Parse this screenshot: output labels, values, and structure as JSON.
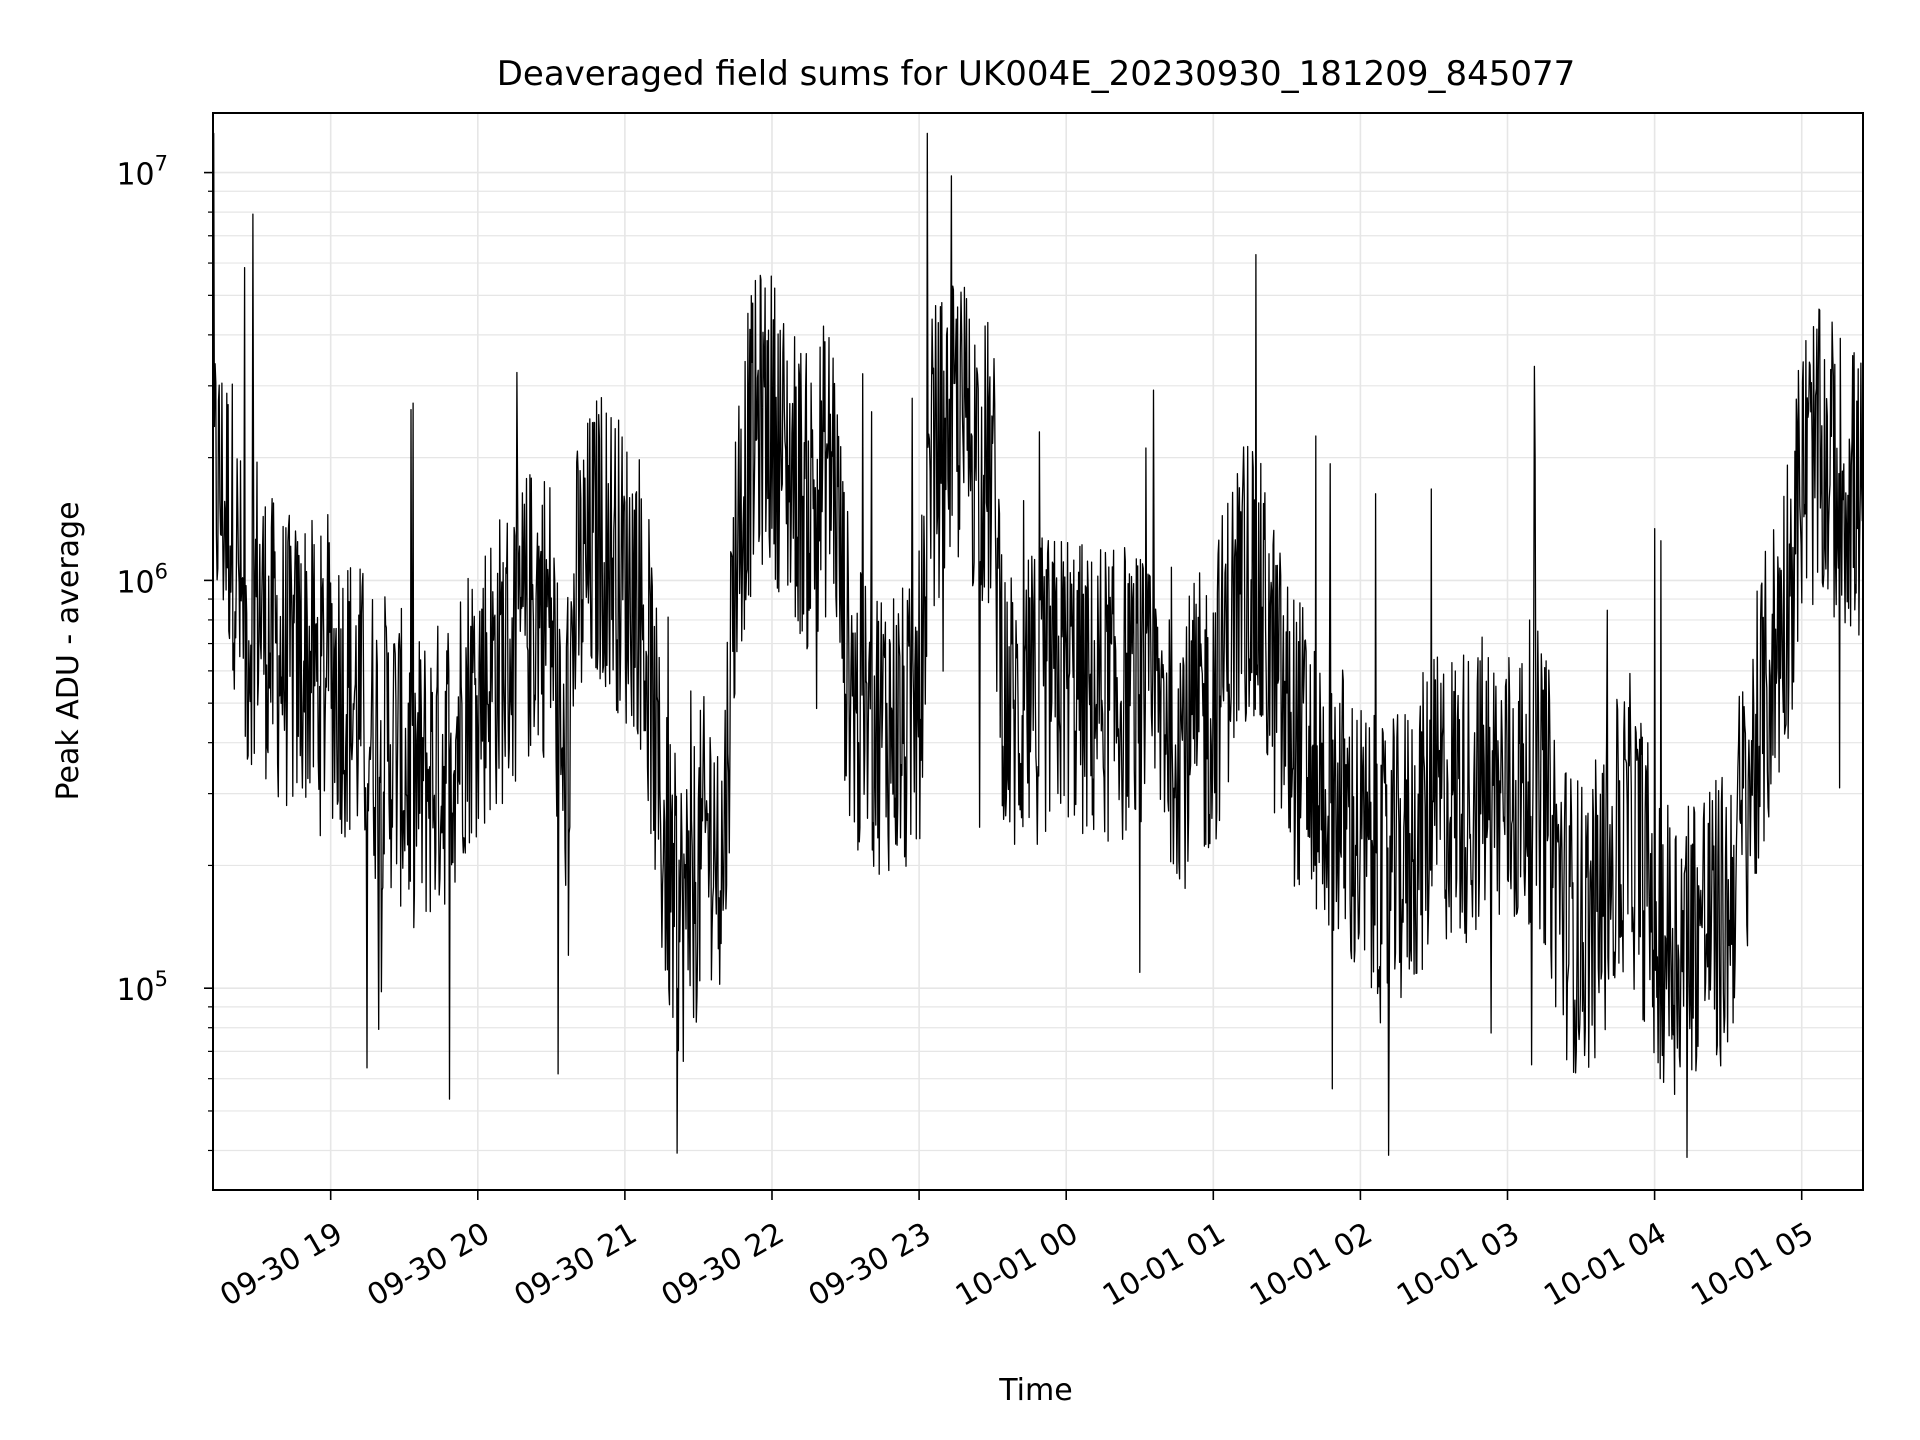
{
  "chart_data": {
    "type": "line",
    "title": "Deaveraged field sums for UK004E_20230930_181209_845077",
    "xlabel": "Time",
    "ylabel": "Peak ADU - average",
    "yscale": "log",
    "x_range": [
      "2023-09-30 18:12",
      "2023-10-01 05:25"
    ],
    "ylim": [
      32000,
      14000000
    ],
    "x_ticks": [
      "09-30 19",
      "09-30 20",
      "09-30 21",
      "09-30 22",
      "09-30 23",
      "10-01 00",
      "10-01 01",
      "10-01 02",
      "10-01 03",
      "10-01 04",
      "10-01 05"
    ],
    "x_tick_times": [
      "2023-09-30 19:00",
      "2023-09-30 20:00",
      "2023-09-30 21:00",
      "2023-09-30 22:00",
      "2023-09-30 23:00",
      "2023-10-01 00:00",
      "2023-10-01 01:00",
      "2023-10-01 02:00",
      "2023-10-01 03:00",
      "2023-10-01 04:00",
      "2023-10-01 05:00"
    ],
    "y_ticks": [
      {
        "value": 100000,
        "base": "10",
        "exp": "5"
      },
      {
        "value": 1000000,
        "base": "10",
        "exp": "6"
      },
      {
        "value": 10000000,
        "base": "10",
        "exp": "7"
      }
    ],
    "grid": true,
    "line_color": "#000000",
    "series": [
      {
        "values": [
          [
            "2023-09-30 18:12",
            1800000
          ],
          [
            "2023-09-30 18:20",
            1400000
          ],
          [
            "2023-09-30 18:25",
            700000
          ],
          [
            "2023-09-30 18:30",
            950000
          ],
          [
            "2023-09-30 18:35",
            700000
          ],
          [
            "2023-09-30 18:40",
            650000
          ],
          [
            "2023-09-30 18:45",
            600000
          ],
          [
            "2023-09-30 18:50",
            650000
          ],
          [
            "2023-09-30 18:55",
            550000
          ],
          [
            "2023-09-30 19:00",
            600000
          ],
          [
            "2023-09-30 19:05",
            550000
          ],
          [
            "2023-09-30 19:10",
            500000
          ],
          [
            "2023-09-30 19:15",
            450000
          ],
          [
            "2023-09-30 19:20",
            400000
          ],
          [
            "2023-09-30 19:25",
            400000
          ],
          [
            "2023-09-30 19:30",
            350000
          ],
          [
            "2023-09-30 19:35",
            320000
          ],
          [
            "2023-09-30 19:40",
            330000
          ],
          [
            "2023-09-30 19:45",
            350000
          ],
          [
            "2023-09-30 19:50",
            400000
          ],
          [
            "2023-09-30 19:55",
            500000
          ],
          [
            "2023-09-30 20:00",
            550000
          ],
          [
            "2023-09-30 20:05",
            600000
          ],
          [
            "2023-09-30 20:10",
            650000
          ],
          [
            "2023-09-30 20:15",
            700000
          ],
          [
            "2023-09-30 20:20",
            800000
          ],
          [
            "2023-09-30 20:25",
            900000
          ],
          [
            "2023-09-30 20:30",
            800000
          ],
          [
            "2023-09-30 20:35",
            300000
          ],
          [
            "2023-09-30 20:40",
            900000
          ],
          [
            "2023-09-30 20:45",
            1100000
          ],
          [
            "2023-09-30 20:50",
            1300000
          ],
          [
            "2023-09-30 20:55",
            1200000
          ],
          [
            "2023-09-30 21:00",
            1000000
          ],
          [
            "2023-09-30 21:05",
            1000000
          ],
          [
            "2023-09-30 21:10",
            600000
          ],
          [
            "2023-09-30 21:15",
            250000
          ],
          [
            "2023-09-30 21:20",
            160000
          ],
          [
            "2023-09-30 21:25",
            150000
          ],
          [
            "2023-09-30 21:30",
            200000
          ],
          [
            "2023-09-30 21:35",
            250000
          ],
          [
            "2023-09-30 21:40",
            200000
          ],
          [
            "2023-09-30 21:45",
            1200000
          ],
          [
            "2023-09-30 21:50",
            2000000
          ],
          [
            "2023-09-30 21:55",
            2500000
          ],
          [
            "2023-09-30 22:00",
            2500000
          ],
          [
            "2023-09-30 22:05",
            2000000
          ],
          [
            "2023-09-30 22:10",
            1800000
          ],
          [
            "2023-09-30 22:15",
            1500000
          ],
          [
            "2023-09-30 22:20",
            1800000
          ],
          [
            "2023-09-30 22:25",
            2000000
          ],
          [
            "2023-09-30 22:30",
            700000
          ],
          [
            "2023-09-30 22:35",
            450000
          ],
          [
            "2023-09-30 22:40",
            450000
          ],
          [
            "2023-09-30 22:45",
            450000
          ],
          [
            "2023-09-30 22:50",
            450000
          ],
          [
            "2023-09-30 22:55",
            400000
          ],
          [
            "2023-09-30 23:00",
            500000
          ],
          [
            "2023-09-30 23:05",
            2000000
          ],
          [
            "2023-09-30 23:10",
            2200000
          ],
          [
            "2023-09-30 23:15",
            2500000
          ],
          [
            "2023-09-30 23:20",
            2300000
          ],
          [
            "2023-09-30 23:25",
            2000000
          ],
          [
            "2023-09-30 23:30",
            1800000
          ],
          [
            "2023-09-30 23:35",
            500000
          ],
          [
            "2023-09-30 23:40",
            450000
          ],
          [
            "2023-09-30 23:45",
            500000
          ],
          [
            "2023-09-30 23:50",
            550000
          ],
          [
            "2023-09-30 23:55",
            550000
          ],
          [
            "2023-10-01 00:00",
            600000
          ],
          [
            "2023-10-01 00:05",
            550000
          ],
          [
            "2023-10-01 00:10",
            500000
          ],
          [
            "2023-10-01 00:15",
            550000
          ],
          [
            "2023-10-01 00:20",
            500000
          ],
          [
            "2023-10-01 00:25",
            550000
          ],
          [
            "2023-10-01 00:30",
            500000
          ],
          [
            "2023-10-01 00:35",
            450000
          ],
          [
            "2023-10-01 00:40",
            500000
          ],
          [
            "2023-10-01 00:45",
            450000
          ],
          [
            "2023-10-01 00:50",
            400000
          ],
          [
            "2023-10-01 00:55",
            450000
          ],
          [
            "2023-10-01 01:00",
            500000
          ],
          [
            "2023-10-01 01:05",
            700000
          ],
          [
            "2023-10-01 01:10",
            900000
          ],
          [
            "2023-10-01 01:15",
            1100000
          ],
          [
            "2023-10-01 01:20",
            800000
          ],
          [
            "2023-10-01 01:25",
            600000
          ],
          [
            "2023-10-01 01:30",
            450000
          ],
          [
            "2023-10-01 01:35",
            400000
          ],
          [
            "2023-10-01 01:40",
            350000
          ],
          [
            "2023-10-01 01:45",
            300000
          ],
          [
            "2023-10-01 01:50",
            300000
          ],
          [
            "2023-10-01 01:55",
            250000
          ],
          [
            "2023-10-01 02:00",
            220000
          ],
          [
            "2023-10-01 02:05",
            200000
          ],
          [
            "2023-10-01 02:10",
            180000
          ],
          [
            "2023-10-01 02:15",
            200000
          ],
          [
            "2023-10-01 02:20",
            220000
          ],
          [
            "2023-10-01 02:25",
            250000
          ],
          [
            "2023-10-01 02:30",
            280000
          ],
          [
            "2023-10-01 02:35",
            300000
          ],
          [
            "2023-10-01 02:40",
            300000
          ],
          [
            "2023-10-01 02:45",
            300000
          ],
          [
            "2023-10-01 02:50",
            320000
          ],
          [
            "2023-10-01 02:55",
            300000
          ],
          [
            "2023-10-01 03:00",
            300000
          ],
          [
            "2023-10-01 03:05",
            300000
          ],
          [
            "2023-10-01 03:10",
            350000
          ],
          [
            "2023-10-01 03:15",
            300000
          ],
          [
            "2023-10-01 03:20",
            200000
          ],
          [
            "2023-10-01 03:25",
            150000
          ],
          [
            "2023-10-01 03:30",
            140000
          ],
          [
            "2023-10-01 03:35",
            150000
          ],
          [
            "2023-10-01 03:40",
            180000
          ],
          [
            "2023-10-01 03:45",
            220000
          ],
          [
            "2023-10-01 03:50",
            250000
          ],
          [
            "2023-10-01 03:55",
            200000
          ],
          [
            "2023-10-01 04:00",
            150000
          ],
          [
            "2023-10-01 04:05",
            130000
          ],
          [
            "2023-10-01 04:10",
            130000
          ],
          [
            "2023-10-01 04:15",
            140000
          ],
          [
            "2023-10-01 04:20",
            150000
          ],
          [
            "2023-10-01 04:25",
            140000
          ],
          [
            "2023-10-01 04:30",
            150000
          ],
          [
            "2023-10-01 04:35",
            250000
          ],
          [
            "2023-10-01 04:40",
            350000
          ],
          [
            "2023-10-01 04:45",
            500000
          ],
          [
            "2023-10-01 04:50",
            700000
          ],
          [
            "2023-10-01 04:55",
            1000000
          ],
          [
            "2023-10-01 05:00",
            1800000
          ],
          [
            "2023-10-01 05:05",
            2000000
          ],
          [
            "2023-10-01 05:10",
            1900000
          ],
          [
            "2023-10-01 05:15",
            1800000
          ],
          [
            "2023-10-01 05:20",
            1700000
          ],
          [
            "2023-10-01 05:25",
            1500000
          ]
        ]
      }
    ]
  }
}
